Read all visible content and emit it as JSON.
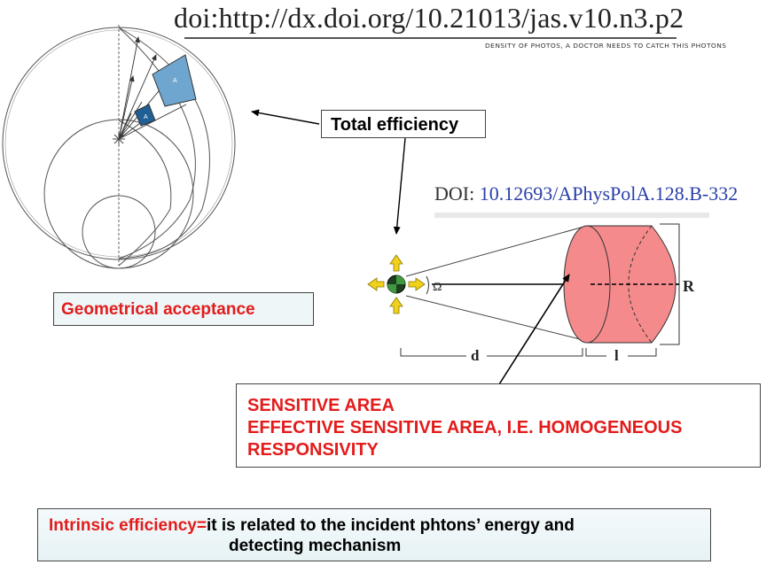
{
  "doi_top": "doi:http://dx.doi.org/10.21013/jas.v10.n3.p2",
  "handwritten_note": "DENSITY OF PHOTOS, A DOCTOR NEEDS TO CATCH THIS PHOTONS",
  "total_efficiency_label": "Total efficiency",
  "geometrical_acceptance_label": "Geometrical acceptance",
  "doi_right": {
    "prefix": "DOI: ",
    "value": "10.12693/APhysPolA.128.B-332"
  },
  "left_figure": {
    "patch_labels": [
      "A",
      "A"
    ]
  },
  "detector_figure": {
    "omega_label": "Ω",
    "r_label": "R",
    "d_label": "d",
    "l_label": "l"
  },
  "sensitive_area": {
    "line1": "SENSITIVE AREA",
    "line2": "EFFECTIVE SENSITIVE AREA, I.E. HOMOGENEOUS",
    "line3": "RESPONSIVITY"
  },
  "intrinsic": {
    "term": "Intrinsic efficiency=",
    "line1": "it is related to the incident phtons’ energy and",
    "line2": "detecting mechanism"
  },
  "colors": {
    "red_text": "#e31b1b",
    "cylinder_fill": "#f58a8c",
    "patch_large": "#6fa6cf",
    "patch_small": "#1f5f96",
    "doi_link": "#2a3fa8"
  }
}
